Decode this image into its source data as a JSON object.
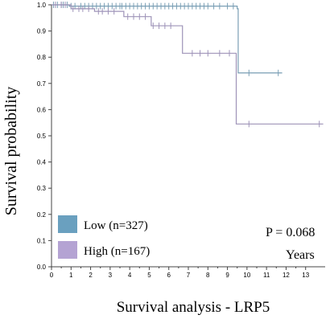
{
  "chart_data": {
    "type": "line",
    "title": "Survival analysis - LRP5",
    "xlabel": "Years",
    "ylabel": "Survival probability",
    "xlim": [
      0,
      14
    ],
    "ylim": [
      0,
      1.0
    ],
    "x_ticks": [
      "0",
      "1",
      "2",
      "3",
      "4",
      "5",
      "6",
      "7",
      "8",
      "9",
      "10",
      "11",
      "12",
      "13"
    ],
    "y_ticks": [
      "0.0",
      "0.1",
      "0.2",
      "0.3",
      "0.4",
      "0.5",
      "0.6",
      "0.7",
      "0.8",
      "0.9",
      "1.0"
    ],
    "p_value": "P  = 0.068",
    "legend_position": "bottom-left",
    "series": [
      {
        "name": "Low (n=327)",
        "color": "#7a9fb5",
        "legend_color": "#6aa0bf",
        "steps": [
          [
            0,
            1.0
          ],
          [
            0.9,
            0.995
          ],
          [
            9.5,
            0.985
          ],
          [
            9.55,
            0.74
          ],
          [
            11.8,
            0.74
          ]
        ],
        "censored": [
          0.1,
          0.3,
          0.5,
          0.6,
          0.8,
          1.0,
          1.2,
          1.5,
          1.7,
          1.9,
          2.1,
          2.3,
          2.5,
          2.7,
          2.9,
          3.1,
          3.3,
          3.5,
          3.6,
          3.8,
          4.0,
          4.2,
          4.4,
          4.6,
          4.8,
          5.0,
          5.2,
          5.4,
          5.6,
          5.8,
          6.0,
          6.2,
          6.4,
          6.6,
          6.8,
          7.0,
          7.2,
          7.4,
          7.6,
          7.8,
          8.0,
          8.3,
          8.6,
          9.0,
          9.3,
          10.1,
          11.6
        ]
      },
      {
        "name": "High (n=167)",
        "color": "#9e93b8",
        "legend_color": "#b4a3d3",
        "steps": [
          [
            0,
            1.0
          ],
          [
            1.0,
            0.985
          ],
          [
            2.2,
            0.975
          ],
          [
            3.7,
            0.955
          ],
          [
            5.1,
            0.92
          ],
          [
            6.7,
            0.815
          ],
          [
            9.45,
            0.545
          ],
          [
            13.9,
            0.545
          ]
        ],
        "censored": [
          0.2,
          0.5,
          0.7,
          1.1,
          1.4,
          1.6,
          1.9,
          2.4,
          2.6,
          2.9,
          3.2,
          3.9,
          4.2,
          4.5,
          4.8,
          5.2,
          5.5,
          5.8,
          6.1,
          7.2,
          7.6,
          8.0,
          8.6,
          9.1,
          10.1,
          13.7
        ]
      }
    ]
  }
}
